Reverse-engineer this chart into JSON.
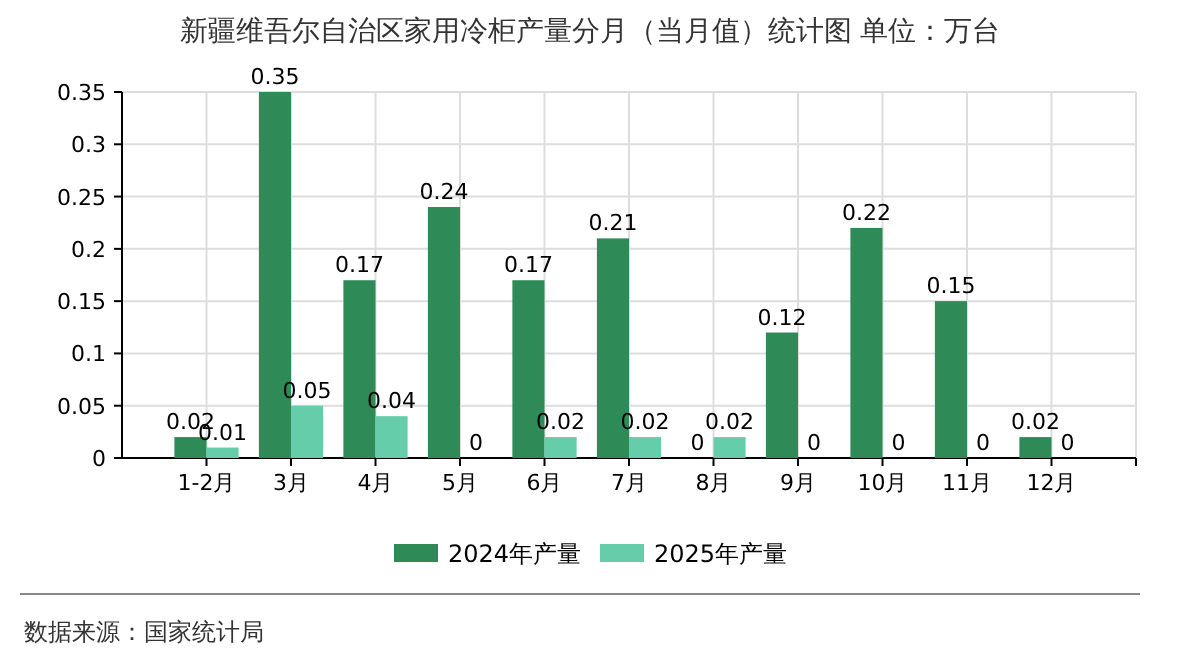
{
  "chart_data": {
    "type": "bar",
    "title": "新疆维吾尔自治区家用冷柜产量分月（当月值）统计图 单位：万台",
    "categories": [
      "1-2月",
      "3月",
      "4月",
      "5月",
      "6月",
      "7月",
      "8月",
      "9月",
      "10月",
      "11月",
      "12月"
    ],
    "series": [
      {
        "name": "2024年产量",
        "color": "#2e8b57",
        "values": [
          0.02,
          0.35,
          0.17,
          0.24,
          0.17,
          0.21,
          0,
          0.12,
          0.22,
          0.15,
          0.02
        ]
      },
      {
        "name": "2025年产量",
        "color": "#66cdaa",
        "values": [
          0.01,
          0.05,
          0.04,
          0,
          0.02,
          0.02,
          0.02,
          0,
          0,
          0,
          0
        ]
      }
    ],
    "ylim": [
      0,
      0.35
    ],
    "yticks": [
      0,
      0.05,
      0.1,
      0.15,
      0.2,
      0.25,
      0.3,
      0.35
    ],
    "grid": true,
    "legend": "bottom",
    "data_labels": true,
    "annotations": [
      "数据来源：国家统计局"
    ]
  }
}
